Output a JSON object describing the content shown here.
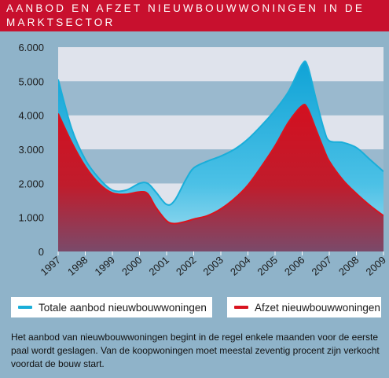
{
  "title_lines": [
    "AANBOD EN AFZET NIEUWBOUWWONINGEN IN DE",
    "MARKTSECTOR"
  ],
  "colors": {
    "title_bg": "#c8102e",
    "background": "#8fb3c9",
    "band_light": "#dfe3ec",
    "band_dark": "#9ab9ce",
    "aanbod": "#1aaed9",
    "afzet": "#d9141f"
  },
  "legend": {
    "series1": "Totale aanbod nieuwbouwwoningen",
    "series2": "Afzet nieuwbouwwoningen"
  },
  "footnote": "Het aanbod van nieuwbouwwoningen begint in de regel enkele maanden voor de eerste paal wordt geslagen. Van de koopwoningen moet meestal zeventig procent zijn verkocht voordat de bouw start.",
  "chart_data": {
    "type": "area",
    "x_ticks": [
      "1997",
      "1998",
      "1999",
      "2000",
      "2001",
      "2002",
      "2003",
      "2004",
      "2005",
      "2006",
      "2007",
      "2008",
      "2009"
    ],
    "y_ticks": [
      "0",
      "1.000",
      "2.000",
      "3.000",
      "4.000",
      "5.000",
      "6.000"
    ],
    "ylim": [
      0,
      6000
    ],
    "xlim": [
      1997,
      2009
    ],
    "series": [
      {
        "name": "Totale aanbod nieuwbouwwoningen",
        "points": [
          [
            1997.0,
            5050
          ],
          [
            1997.5,
            3600
          ],
          [
            1998.0,
            2700
          ],
          [
            1998.5,
            2150
          ],
          [
            1999.0,
            1800
          ],
          [
            1999.5,
            1800
          ],
          [
            2000.0,
            2000
          ],
          [
            2000.3,
            2000
          ],
          [
            2000.6,
            1750
          ],
          [
            2001.0,
            1380
          ],
          [
            2001.3,
            1500
          ],
          [
            2001.7,
            2100
          ],
          [
            2002.0,
            2450
          ],
          [
            2002.5,
            2650
          ],
          [
            2003.0,
            2800
          ],
          [
            2003.5,
            3000
          ],
          [
            2004.0,
            3300
          ],
          [
            2004.5,
            3700
          ],
          [
            2005.0,
            4150
          ],
          [
            2005.5,
            4700
          ],
          [
            2006.0,
            5500
          ],
          [
            2006.2,
            5450
          ],
          [
            2006.5,
            4500
          ],
          [
            2006.8,
            3600
          ],
          [
            2007.0,
            3250
          ],
          [
            2007.5,
            3200
          ],
          [
            2008.0,
            3050
          ],
          [
            2008.5,
            2700
          ],
          [
            2009.0,
            2350
          ]
        ]
      },
      {
        "name": "Afzet nieuwbouwwoningen",
        "points": [
          [
            1997.0,
            4050
          ],
          [
            1997.5,
            3200
          ],
          [
            1998.0,
            2500
          ],
          [
            1998.5,
            2000
          ],
          [
            1999.0,
            1720
          ],
          [
            1999.5,
            1680
          ],
          [
            2000.0,
            1750
          ],
          [
            2000.3,
            1700
          ],
          [
            2000.6,
            1300
          ],
          [
            2001.0,
            900
          ],
          [
            2001.3,
            820
          ],
          [
            2001.7,
            880
          ],
          [
            2002.0,
            950
          ],
          [
            2002.5,
            1050
          ],
          [
            2003.0,
            1250
          ],
          [
            2003.5,
            1550
          ],
          [
            2004.0,
            1950
          ],
          [
            2004.5,
            2500
          ],
          [
            2005.0,
            3100
          ],
          [
            2005.5,
            3800
          ],
          [
            2006.0,
            4280
          ],
          [
            2006.2,
            4200
          ],
          [
            2006.5,
            3600
          ],
          [
            2006.8,
            3000
          ],
          [
            2007.0,
            2650
          ],
          [
            2007.5,
            2100
          ],
          [
            2008.0,
            1700
          ],
          [
            2008.5,
            1350
          ],
          [
            2009.0,
            1050
          ]
        ]
      }
    ]
  }
}
